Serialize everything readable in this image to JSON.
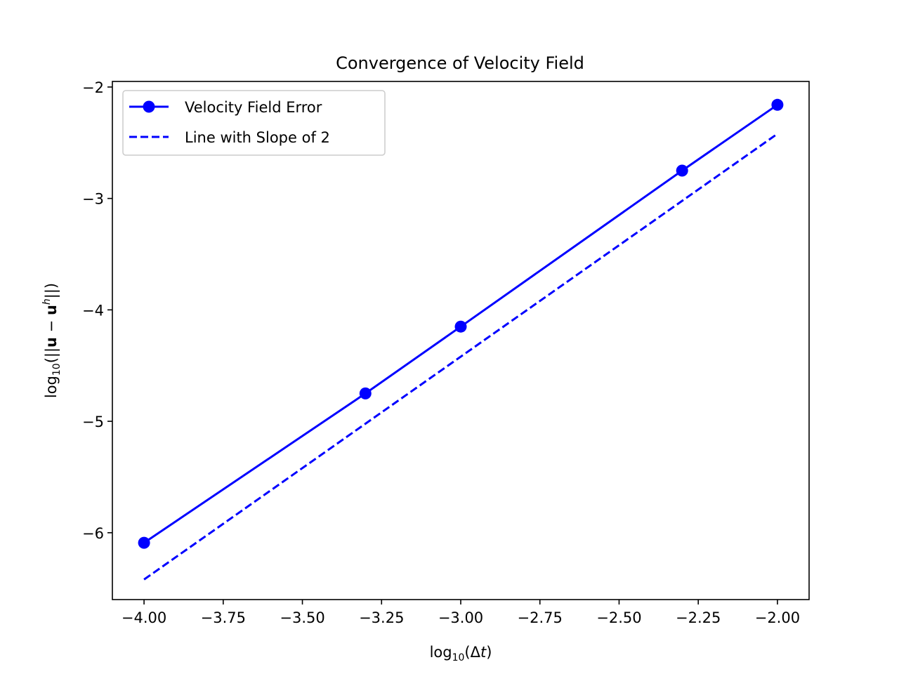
{
  "chart_data": {
    "type": "line",
    "title": "Convergence of Velocity Field",
    "xlim": [
      -4.1,
      -1.9
    ],
    "ylim": [
      -6.6,
      -1.95
    ],
    "x_ticks": [
      -4.0,
      -3.75,
      -3.5,
      -3.25,
      -3.0,
      -2.75,
      -2.5,
      -2.25,
      -2.0
    ],
    "x_tick_labels": [
      "−4.00",
      "−3.75",
      "−3.50",
      "−3.25",
      "−3.00",
      "−2.75",
      "−2.50",
      "−2.25",
      "−2.00"
    ],
    "y_ticks": [
      -6,
      -5,
      -4,
      -3,
      -2
    ],
    "y_tick_labels": [
      "−6",
      "−5",
      "−4",
      "−3",
      "−2"
    ],
    "grid": false,
    "legend_position": "top-left",
    "series": [
      {
        "name": "Velocity Field Error",
        "style": "solid-with-markers",
        "color": "#0000ff",
        "x": [
          -4.0,
          -3.301,
          -3.0,
          -2.301,
          -2.0
        ],
        "y": [
          -6.09,
          -4.75,
          -4.15,
          -2.75,
          -2.16
        ]
      },
      {
        "name": "Line with Slope of 2",
        "style": "dashed",
        "color": "#0000ff",
        "x": [
          -4.0,
          -2.0
        ],
        "y": [
          -6.42,
          -2.42
        ]
      }
    ]
  }
}
